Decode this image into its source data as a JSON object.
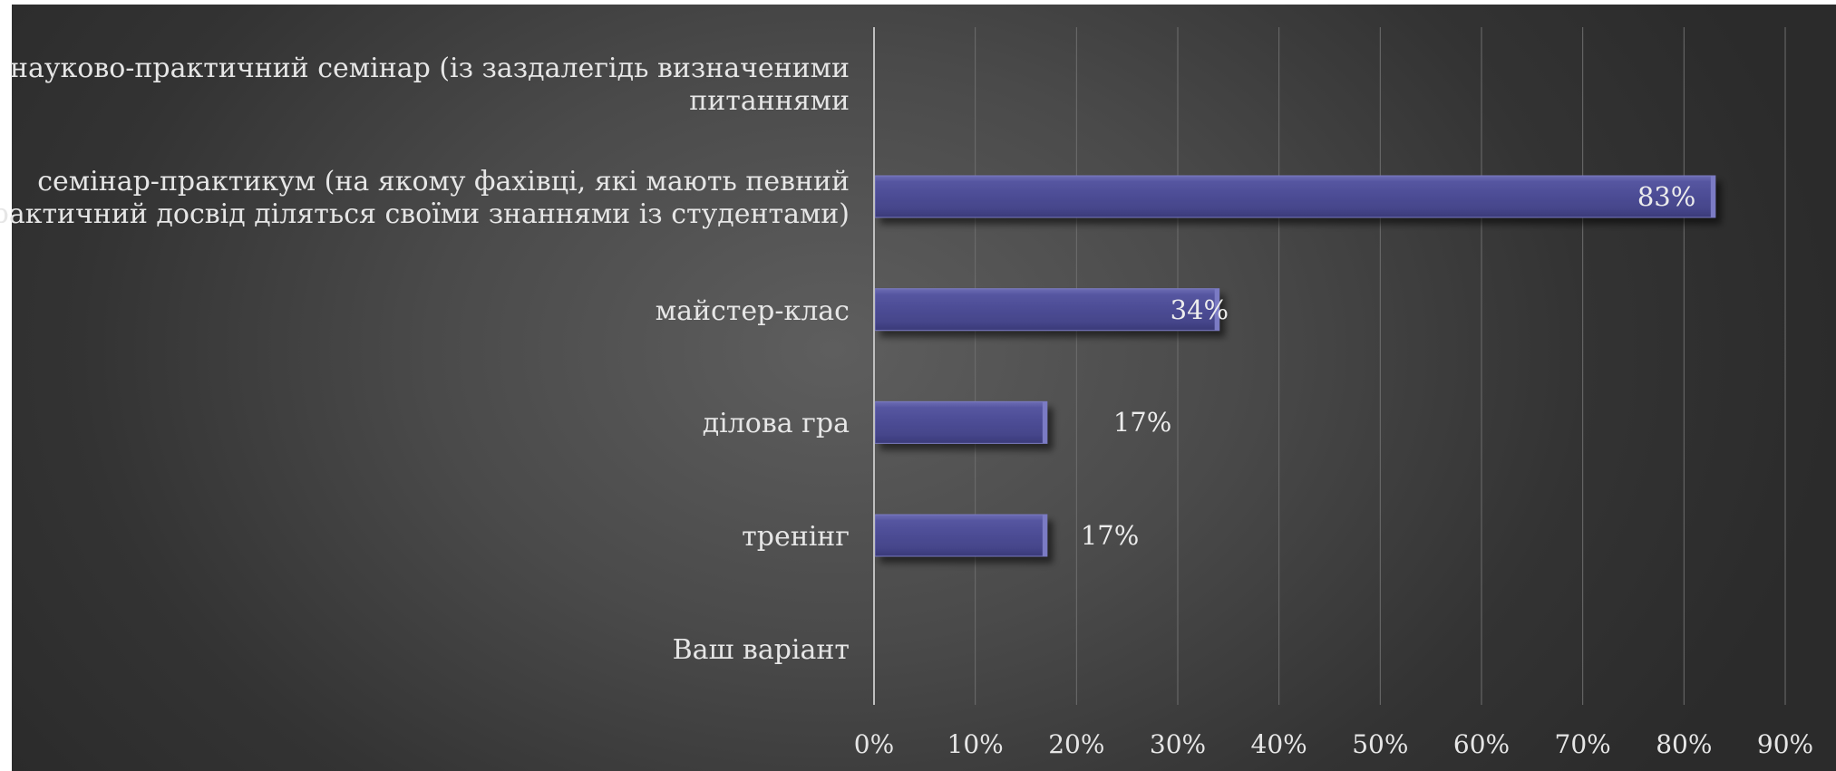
{
  "chart_data": {
    "type": "bar",
    "orientation": "horizontal",
    "categories": [
      "науково-практичний семінар (із заздалегідь визначеними\nпитаннями",
      "семінар-практикум (на якому фахівці, які мають певний\nпрактичний досвід діляться своїми знаннями із студентами)",
      "майстер-клас",
      "ділова гра",
      "тренінг",
      "Ваш варіант"
    ],
    "values": [
      0,
      0.83,
      0.34,
      0.17,
      0.17,
      0
    ],
    "data_labels": [
      "",
      "83%",
      "34%",
      "17%",
      "17%",
      ""
    ],
    "xlim": [
      0,
      0.9
    ],
    "x_ticks": [
      "0%",
      "10%",
      "20%",
      "30%",
      "40%",
      "50%",
      "60%",
      "70%",
      "80%",
      "90%"
    ],
    "grid": true,
    "legend": "none",
    "title": "",
    "xlabel": "",
    "ylabel": ""
  },
  "colors": {
    "bar_fill": "#4a4a8e",
    "bar_highlight": "#6a6ab2",
    "grid": "#6e6e6e",
    "axis": "#bfbfbf",
    "text": "#e6e6e6"
  }
}
